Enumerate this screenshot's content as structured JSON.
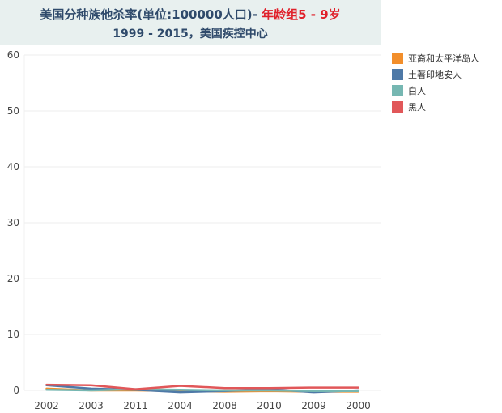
{
  "title": {
    "line1_prefix": "美国分种族他杀率(单位:100000人口)- ",
    "line1_highlight": "年龄组5 - 9岁",
    "line2": "1999 - 2015，美国疾控中心"
  },
  "legend": [
    {
      "label": "亚裔和太平洋岛人",
      "color": "#f28e2b"
    },
    {
      "label": "土著印地安人",
      "color": "#4e79a7"
    },
    {
      "label": "白人",
      "color": "#76b7b2"
    },
    {
      "label": "黑人",
      "color": "#e15759"
    }
  ],
  "chart_data": {
    "type": "line",
    "categories": [
      "2002",
      "2003",
      "2011",
      "2004",
      "2008",
      "2010",
      "2009",
      "2000"
    ],
    "ylim": [
      0,
      60
    ],
    "yticks": [
      0,
      10,
      20,
      30,
      40,
      50,
      60
    ],
    "series": [
      {
        "name": "亚裔和太平洋岛人",
        "color": "#f28e2b",
        "values": [
          0.3,
          0.0,
          0.0,
          -0.1,
          -0.2,
          -0.1,
          -0.2,
          -0.2
        ]
      },
      {
        "name": "土著印地安人",
        "color": "#4e79a7",
        "values": [
          0.9,
          0.3,
          0.1,
          -0.3,
          -0.1,
          0.2,
          -0.3,
          0.0
        ]
      },
      {
        "name": "白人",
        "color": "#76b7b2",
        "values": [
          0.1,
          0.0,
          0.2,
          0.1,
          0.0,
          0.0,
          -0.1,
          -0.1
        ]
      },
      {
        "name": "黑人",
        "color": "#e15759",
        "values": [
          1.0,
          0.9,
          0.2,
          0.8,
          0.4,
          0.4,
          0.5,
          0.5
        ]
      }
    ]
  }
}
